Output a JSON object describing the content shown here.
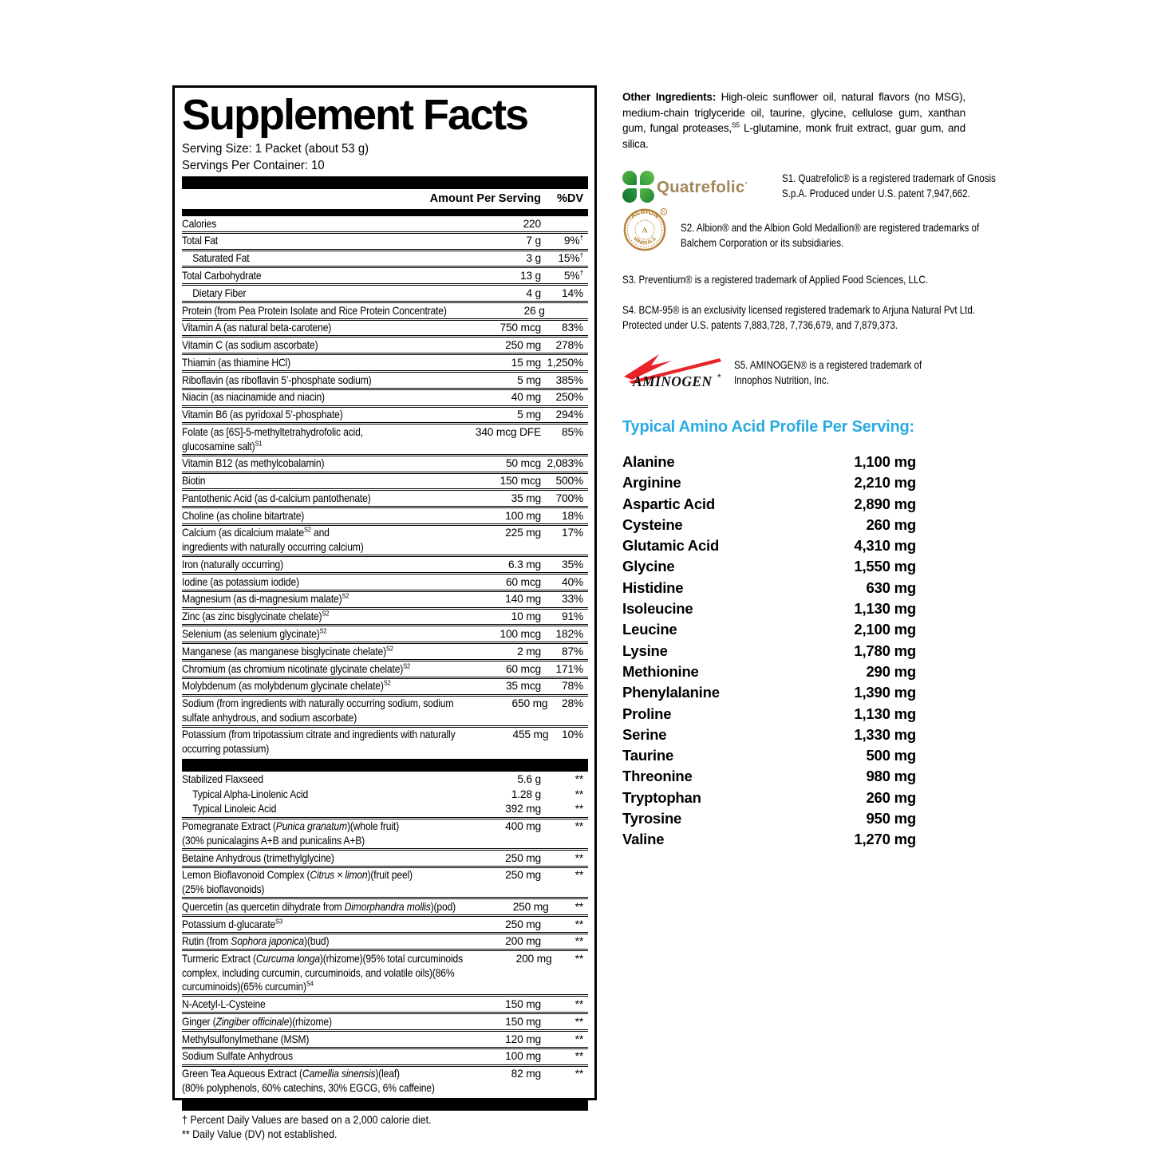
{
  "colors": {
    "accent_cyan": "#29abe2",
    "quatrefolic_tan": "#a1875a",
    "clover_green_light": "#57b847",
    "clover_green_dark": "#1e8030",
    "albion_gold": "#b6863c",
    "aminogen_red": "#e8232a"
  },
  "label": {
    "title": "Supplement Facts",
    "serving_size": "Serving Size: 1 Packet (about 53 g)",
    "servings_per_container": "Servings Per Container: 10",
    "col_amount": "Amount Per Serving",
    "col_dv": "%DV",
    "sections": [
      {
        "row_name": "nutrient-row",
        "rows": [
          {
            "name": [
              "Calories"
            ],
            "amt": "220",
            "dv": ""
          },
          {
            "name": [
              "Total Fat"
            ],
            "amt": "7 g",
            "dv": "9%",
            "dvsup": "†"
          },
          {
            "name": [
              "Saturated Fat"
            ],
            "amt": "3 g",
            "dv": "15%",
            "dvsup": "†",
            "indent": true
          },
          {
            "name": [
              "Total Carbohydrate"
            ],
            "amt": "13 g",
            "dv": "5%",
            "dvsup": "†"
          },
          {
            "name": [
              "Dietary Fiber"
            ],
            "amt": "4 g",
            "dv": "14%",
            "indent": true
          },
          {
            "name": [
              "Protein (from Pea Protein Isolate and Rice Protein Concentrate)"
            ],
            "amt": "26 g",
            "dv": ""
          },
          {
            "name": [
              "Vitamin A (as natural beta-carotene)"
            ],
            "amt": "750 mcg",
            "dv": "83%"
          },
          {
            "name": [
              "Vitamin C (as sodium ascorbate)"
            ],
            "amt": "250 mg",
            "dv": "278%"
          },
          {
            "name": [
              "Thiamin (as thiamine HCl)"
            ],
            "amt": "15 mg",
            "dv": "1,250%"
          },
          {
            "name": [
              "Riboflavin (as riboflavin 5’-phosphate sodium)"
            ],
            "amt": "5 mg",
            "dv": "385%"
          },
          {
            "name": [
              "Niacin (as niacinamide and niacin)"
            ],
            "amt": "40 mg",
            "dv": "250%"
          },
          {
            "name": [
              "Vitamin B6 (as pyridoxal 5’-phosphate)"
            ],
            "amt": "5 mg",
            "dv": "294%"
          },
          {
            "name": [
              "Folate (as [6S]-5-methyltetrahydrofolic acid,",
              [
                "",
                "br"
              ],
              "glucosamine salt)",
              [
                "S1",
                "sup"
              ]
            ],
            "amt": "340 mcg DFE",
            "dv": "85%"
          },
          {
            "name": [
              "Vitamin B12 (as methylcobalamin)"
            ],
            "amt": "50 mcg",
            "dv": "2,083%"
          },
          {
            "name": [
              "Biotin"
            ],
            "amt": "150 mcg",
            "dv": "500%"
          },
          {
            "name": [
              "Pantothenic Acid (as d-calcium pantothenate)"
            ],
            "amt": "35 mg",
            "dv": "700%"
          },
          {
            "name": [
              "Choline (as choline bitartrate)"
            ],
            "amt": "100 mg",
            "dv": "18%"
          },
          {
            "name": [
              "Calcium (as dicalcium malate",
              [
                "S2",
                "sup"
              ],
              " and",
              [
                "",
                "br"
              ],
              "ingredients with naturally occurring calcium)"
            ],
            "amt": "225 mg",
            "dv": "17%"
          },
          {
            "name": [
              "Iron (naturally occurring)"
            ],
            "amt": "6.3 mg",
            "dv": "35%"
          },
          {
            "name": [
              "Iodine (as potassium iodide)"
            ],
            "amt": "60 mcg",
            "dv": "40%"
          },
          {
            "name": [
              "Magnesium (as di-magnesium malate)",
              [
                "S2",
                "sup"
              ]
            ],
            "amt": "140 mg",
            "dv": "33%"
          },
          {
            "name": [
              "Zinc (as zinc bisglycinate chelate)",
              [
                "S2",
                "sup"
              ]
            ],
            "amt": "10 mg",
            "dv": "91%"
          },
          {
            "name": [
              "Selenium (as selenium glycinate)",
              [
                "S2",
                "sup"
              ]
            ],
            "amt": "100 mcg",
            "dv": "182%"
          },
          {
            "name": [
              "Manganese (as manganese bisglycinate chelate)",
              [
                "S2",
                "sup"
              ]
            ],
            "amt": "2 mg",
            "dv": "87%"
          },
          {
            "name": [
              "Chromium (as chromium nicotinate glycinate chelate)",
              [
                "S2",
                "sup"
              ]
            ],
            "amt": "60 mcg",
            "dv": "171%"
          },
          {
            "name": [
              "Molybdenum (as molybdenum glycinate chelate)",
              [
                "S2",
                "sup"
              ]
            ],
            "amt": "35 mcg",
            "dv": "78%"
          },
          {
            "name": [
              "Sodium (from ingredients with naturally occurring sodium, sodium",
              [
                "",
                "br"
              ],
              "sulfate anhydrous, and sodium ascorbate)"
            ],
            "amt": "650 mg",
            "dv": "28%"
          },
          {
            "name": [
              "Potassium (from tripotassium citrate and ingredients with naturally",
              [
                "",
                "br"
              ],
              "occurring potassium)"
            ],
            "amt": "455 mg",
            "dv": "10%"
          }
        ]
      },
      {
        "row_name": "botanical-row",
        "rows": [
          {
            "name": [
              "Stabilized Flaxseed"
            ],
            "amt": "5.6 g",
            "dv": "**"
          },
          {
            "name": [
              "Typical Alpha-Linolenic Acid"
            ],
            "amt": "1.28 g",
            "dv": "**",
            "indent": true,
            "nosep": true
          },
          {
            "name": [
              "Typical Linoleic Acid"
            ],
            "amt": "392 mg",
            "dv": "**",
            "indent": true,
            "nosep": true
          },
          {
            "name": [
              "Pomegranate Extract (",
              [
                "Punica granatum",
                "i"
              ],
              ")(whole fruit)",
              [
                "",
                "br"
              ],
              "(30% punicalagins A+B and punicalins A+B)"
            ],
            "amt": "400 mg",
            "dv": "**"
          },
          {
            "name": [
              "Betaine Anhydrous (trimethylglycine)"
            ],
            "amt": "250 mg",
            "dv": "**"
          },
          {
            "name": [
              "Lemon Bioflavonoid Complex (",
              [
                "Citrus × limon",
                "i"
              ],
              ")(fruit peel)",
              [
                "",
                "br"
              ],
              "(25% bioflavonoids)"
            ],
            "amt": "250 mg",
            "dv": "**"
          },
          {
            "name": [
              "Quercetin (as quercetin dihydrate from ",
              [
                "Dimorphandra mollis",
                "i"
              ],
              ")(pod)"
            ],
            "amt": "250 mg",
            "dv": "**"
          },
          {
            "name": [
              "Potassium d-glucarate",
              [
                "S3",
                "sup"
              ]
            ],
            "amt": "250 mg",
            "dv": "**"
          },
          {
            "name": [
              "Rutin (from ",
              [
                "Sophora japonica",
                "i"
              ],
              ")(bud)"
            ],
            "amt": "200 mg",
            "dv": "**"
          },
          {
            "name": [
              "Turmeric Extract (",
              [
                "Curcuma longa",
                "i"
              ],
              ")(rhizome)(95% total curcuminoids",
              [
                "",
                "br"
              ],
              "complex, including curcumin, curcuminoids, and volatile oils)(86%",
              [
                "",
                "br"
              ],
              "curcuminoids)(65% curcumin)",
              [
                "S4",
                "sup"
              ]
            ],
            "amt": "200 mg",
            "dv": "**"
          },
          {
            "name": [
              "N-Acetyl-L-Cysteine"
            ],
            "amt": "150 mg",
            "dv": "**"
          },
          {
            "name": [
              "Ginger (",
              [
                "Zingiber officinale",
                "i"
              ],
              ")(rhizome)"
            ],
            "amt": "150 mg",
            "dv": "**"
          },
          {
            "name": [
              "Methylsulfonylmethane (MSM)"
            ],
            "amt": "120 mg",
            "dv": "**"
          },
          {
            "name": [
              "Sodium Sulfate Anhydrous"
            ],
            "amt": "100 mg",
            "dv": "**"
          },
          {
            "name": [
              "Green Tea Aqueous Extract (",
              [
                "Camellia sinensis",
                "i"
              ],
              ")(leaf)",
              [
                "",
                "br"
              ],
              "(80% polyphenols, 60% catechins, 30% EGCG, 6% caffeine)"
            ],
            "amt": "82 mg",
            "dv": "**"
          }
        ]
      }
    ],
    "footnotes": [
      "† Percent Daily Values are based on a 2,000 calorie diet.",
      "** Daily Value (DV) not established."
    ]
  },
  "right": {
    "other_ingredients": {
      "segs": [
        [
          "Other Ingredients: ",
          "b"
        ],
        "High-oleic sunflower oil, natural flavors (no MSG), medium-chain triglyceride oil, taurine, glycine, cellulose gum, xanthan gum, fungal proteases,",
        [
          "S5",
          "sup"
        ],
        " L-glutamine, monk fruit extract, guar gum, and silica."
      ]
    },
    "trademarks": [
      {
        "id": "S1",
        "brand": "Quatrefolic",
        "segs": [
          "S1. Quatrefolic® is a registered trademark of Gnosis",
          [
            "",
            "br"
          ],
          "S.p.A. Produced under U.S. patent 7,947,662."
        ]
      },
      {
        "id": "S2",
        "arc_top": "ALBION",
        "arc_bottom": "MINERALS",
        "segs": [
          "S2. Albion® and the Albion Gold Medallion® are registered trademarks of",
          [
            "",
            "br"
          ],
          "Balchem Corporation or its subsidiaries."
        ]
      },
      {
        "id": "S3",
        "segs": [
          "S3. Preventium® is a registered trademark of Applied Food Sciences, LLC."
        ]
      },
      {
        "id": "S4",
        "segs": [
          "S4. BCM-95® is an exclusivity licensed registered trademark to Arjuna Natural Pvt Ltd.",
          [
            "",
            "br"
          ],
          "Protected under U.S. patents 7,883,728, 7,736,679, and 7,879,373."
        ]
      },
      {
        "id": "S5",
        "brand": "AMINOGEN",
        "segs": [
          "S5. AMINOGEN® is a registered trademark of",
          [
            "",
            "br"
          ],
          "Innophos Nutrition, Inc."
        ]
      }
    ],
    "amino": {
      "heading": "Typical Amino Acid Profile Per Serving:",
      "items": [
        {
          "n": "Alanine",
          "v": "1,100 mg"
        },
        {
          "n": "Arginine",
          "v": "2,210 mg"
        },
        {
          "n": "Aspartic Acid",
          "v": "2,890 mg"
        },
        {
          "n": "Cysteine",
          "v": "260 mg"
        },
        {
          "n": "Glutamic Acid",
          "v": "4,310 mg"
        },
        {
          "n": "Glycine",
          "v": "1,550 mg"
        },
        {
          "n": "Histidine",
          "v": "630 mg"
        },
        {
          "n": "Isoleucine",
          "v": "1,130 mg"
        },
        {
          "n": "Leucine",
          "v": "2,100 mg"
        },
        {
          "n": "Lysine",
          "v": "1,780 mg"
        },
        {
          "n": "Methionine",
          "v": "290 mg"
        },
        {
          "n": "Phenylalanine",
          "v": "1,390 mg"
        },
        {
          "n": "Proline",
          "v": "1,130 mg"
        },
        {
          "n": "Serine",
          "v": "1,330 mg"
        },
        {
          "n": "Taurine",
          "v": "500 mg"
        },
        {
          "n": "Threonine",
          "v": "980 mg"
        },
        {
          "n": "Tryptophan",
          "v": "260 mg"
        },
        {
          "n": "Tyrosine",
          "v": "950 mg"
        },
        {
          "n": "Valine",
          "v": "1,270 mg"
        }
      ]
    }
  }
}
